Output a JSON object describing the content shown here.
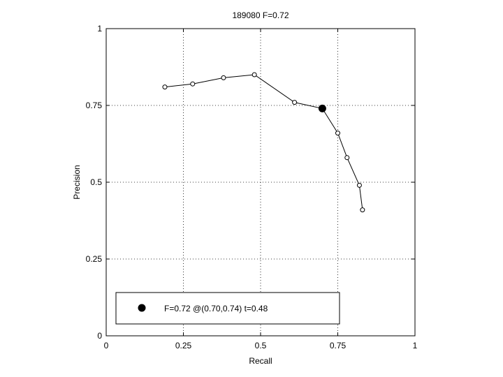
{
  "chart_data": {
    "type": "line",
    "title": "189080 F=0.72",
    "xlabel": "Recall",
    "ylabel": "Precision",
    "xlim": [
      0,
      1
    ],
    "ylim": [
      0,
      1
    ],
    "xticks": [
      0,
      0.25,
      0.5,
      0.75,
      1
    ],
    "xtick_labels": [
      "0",
      "0.25",
      "0.5",
      "0.75",
      "1"
    ],
    "yticks": [
      0,
      0.25,
      0.5,
      0.75,
      1
    ],
    "ytick_labels": [
      "0",
      "0.25",
      "0.5",
      "0.75",
      "1"
    ],
    "grid": true,
    "series": [
      {
        "x": [
          0.19,
          0.28,
          0.38,
          0.48,
          0.61,
          0.7,
          0.75,
          0.78,
          0.82,
          0.83
        ],
        "y": [
          0.81,
          0.82,
          0.84,
          0.85,
          0.76,
          0.74,
          0.66,
          0.58,
          0.49,
          0.41
        ],
        "marker": "open-circle",
        "color": "#000000"
      }
    ],
    "highlight": {
      "x": 0.7,
      "y": 0.74,
      "marker": "filled-circle",
      "color": "#000000"
    },
    "legend": {
      "position": "bottom-left",
      "text": "F=0.72 @(0.70,0.74) t=0.48"
    }
  }
}
